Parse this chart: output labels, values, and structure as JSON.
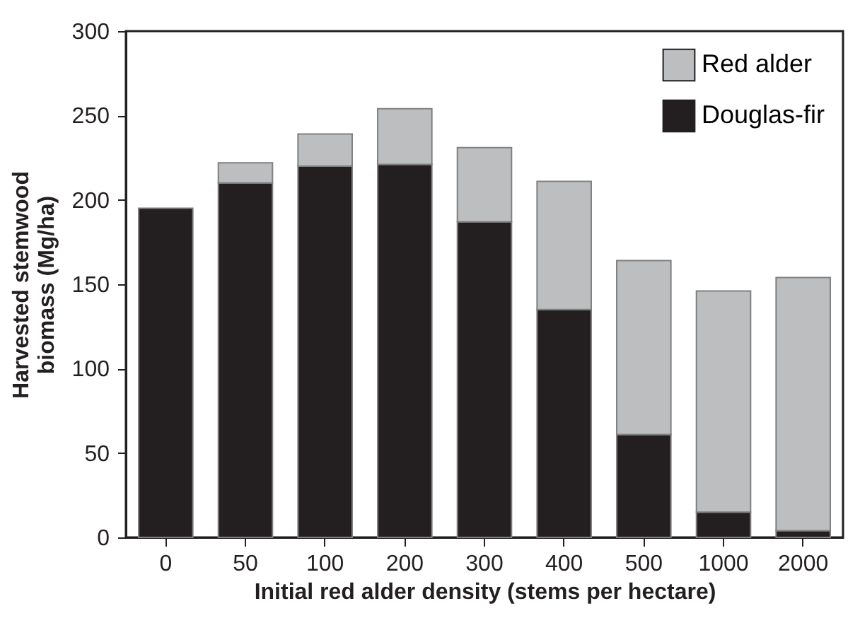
{
  "chart_data": {
    "type": "bar",
    "stacked": true,
    "xlabel": "Initial red alder density (stems per hectare)",
    "ylabel": "Harvested stemwood biomass (Mg/ha)",
    "categories": [
      "0",
      "50",
      "100",
      "200",
      "300",
      "400",
      "500",
      "1000",
      "2000"
    ],
    "series": [
      {
        "name": "Douglas-fir",
        "color": "#231f20",
        "values": [
          195,
          210,
          220,
          221,
          187,
          135,
          61,
          15,
          4
        ]
      },
      {
        "name": "Red alder",
        "color": "#bcbec0",
        "values": [
          null,
          12,
          19,
          33,
          44,
          76,
          103,
          131,
          150
        ]
      }
    ],
    "ylim": [
      0,
      300
    ],
    "yticks": [
      0,
      50,
      100,
      150,
      200,
      250,
      300
    ],
    "grid": false,
    "legend": "top right"
  }
}
